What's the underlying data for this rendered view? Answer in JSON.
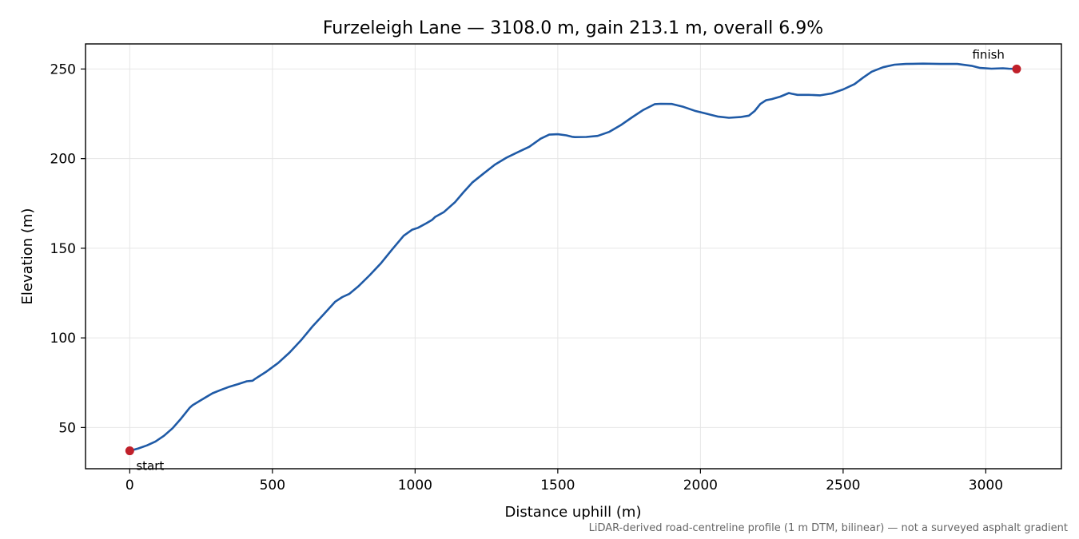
{
  "chart_data": {
    "type": "line",
    "title": "Furzeleigh Lane — 3108.0 m, gain 213.1 m, overall 6.9%",
    "xlabel": "Distance uphill (m)",
    "ylabel": "Elevation (m)",
    "xlim": [
      -155,
      3265
    ],
    "ylim": [
      27,
      264
    ],
    "x_ticks": [
      0,
      500,
      1000,
      1500,
      2000,
      2500,
      3000
    ],
    "y_ticks": [
      50,
      100,
      150,
      200,
      250
    ],
    "grid": true,
    "footnote": "LiDAR-derived road-centreline profile (1 m DTM, bilinear) — not a surveyed asphalt gradient",
    "colors": {
      "line": "#1f5aa6",
      "marker": "#c0202a",
      "grid": "#e6e6e6"
    },
    "series": [
      {
        "x": [
          0,
          30,
          60,
          90,
          120,
          150,
          180,
          210,
          220,
          250,
          290,
          320,
          350,
          380,
          410,
          430,
          440,
          480,
          520,
          560,
          600,
          640,
          680,
          720,
          745,
          770,
          800,
          840,
          880,
          920,
          960,
          990,
          1010,
          1040,
          1060,
          1070,
          1100,
          1140,
          1170,
          1200,
          1240,
          1280,
          1320,
          1360,
          1400,
          1440,
          1470,
          1500,
          1530,
          1550,
          1560,
          1600,
          1640,
          1680,
          1720,
          1760,
          1800,
          1840,
          1860,
          1900,
          1940,
          1980,
          2020,
          2060,
          2100,
          2140,
          2170,
          2190,
          2210,
          2230,
          2250,
          2280,
          2310,
          2320,
          2340,
          2380,
          2420,
          2460,
          2500,
          2540,
          2570,
          2600,
          2640,
          2680,
          2720,
          2780,
          2840,
          2900,
          2950,
          2980,
          3020,
          3060,
          3080,
          3108
        ],
        "y": [
          37.0,
          38.3,
          40.0,
          42.2,
          45.4,
          49.6,
          55.0,
          61.0,
          62.4,
          65.3,
          69.1,
          71.0,
          72.8,
          74.2,
          75.8,
          76.1,
          77.2,
          81.3,
          86.0,
          91.8,
          98.6,
          106.3,
          113.2,
          120.2,
          122.8,
          124.6,
          128.6,
          134.8,
          141.6,
          149.4,
          157.0,
          160.4,
          161.4,
          164.0,
          165.9,
          167.4,
          170.1,
          175.7,
          181.3,
          186.6,
          191.7,
          196.7,
          200.5,
          203.6,
          206.6,
          211.1,
          213.4,
          213.6,
          213.0,
          212.2,
          212.0,
          212.1,
          212.7,
          214.9,
          218.6,
          223.0,
          227.2,
          230.4,
          230.6,
          230.5,
          228.9,
          226.7,
          225.1,
          223.5,
          222.8,
          223.2,
          224.0,
          226.6,
          230.5,
          232.6,
          233.2,
          234.6,
          236.6,
          236.2,
          235.6,
          235.6,
          235.3,
          236.4,
          238.6,
          241.6,
          245.2,
          248.5,
          251.0,
          252.4,
          252.8,
          253.0,
          252.8,
          252.8,
          251.8,
          250.6,
          250.2,
          250.4,
          250.2,
          250.0
        ]
      }
    ],
    "annotations": [
      {
        "text": "start",
        "x": 0,
        "y": 37.0
      },
      {
        "text": "finish",
        "x": 3108,
        "y": 250.0
      }
    ]
  }
}
